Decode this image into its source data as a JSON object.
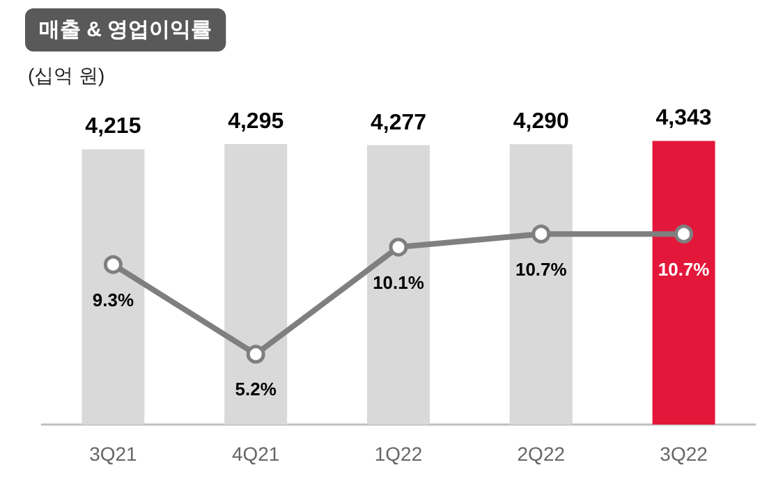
{
  "chart_data": {
    "type": "bar",
    "title": "매출 & 영업이익률",
    "ylabel": "(십억 원)",
    "categories": [
      "3Q21",
      "4Q21",
      "1Q22",
      "2Q22",
      "3Q22"
    ],
    "series": [
      {
        "colors": [
          "#d9d9d9",
          "#d9d9d9",
          "#d9d9d9",
          "#d9d9d9",
          "#e3173a"
        ],
        "values": [
          4215,
          4295,
          4277,
          4290,
          4343
        ],
        "value_labels": [
          "4,215",
          "4,295",
          "4,277",
          "4,290",
          "4,343"
        ]
      },
      {
        "type": "line",
        "axis": "y2",
        "color": "#7f7f7f",
        "values": [
          9.3,
          5.2,
          10.1,
          10.7,
          10.7
        ],
        "value_labels": [
          "9.3%",
          "5.2%",
          "10.1%",
          "10.7%",
          "10.7%"
        ]
      }
    ],
    "tick_labels": "x",
    "grid": false,
    "marker": "circle",
    "line_style": "solid"
  }
}
